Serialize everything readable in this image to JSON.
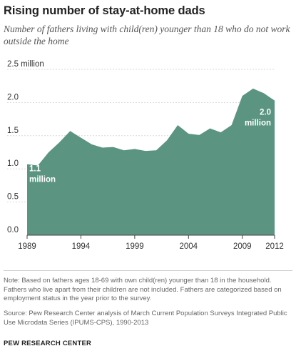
{
  "header": {
    "title": "Rising number of stay-at-home dads",
    "subtitle": "Number of fathers living with child(ren) younger than 18 who do not work outside the home"
  },
  "footer": {
    "note": "Note: Based on fathers ages 18-69 with own child(ren) younger than 18 in the household. Fathers who live apart from their children are not included. Fathers are categorized based on employment status in the year prior to the survey.",
    "source": "Source: Pew Research Center analysis of March Current Population Surveys Integrated Public Use Microdata Series (IPUMS-CPS), 1990-2013",
    "brand": "PEW RESEARCH CENTER"
  },
  "colors": {
    "area": "#5c9482",
    "axis": "#444444"
  },
  "chart_data": {
    "type": "area",
    "title": "Rising number of stay-at-home dads",
    "subtitle": "Number of fathers living with child(ren) younger than 18 who do not work outside the home",
    "x": [
      1989,
      1990,
      1991,
      1992,
      1993,
      1994,
      1995,
      1996,
      1997,
      1998,
      1999,
      2000,
      2001,
      2002,
      2003,
      2004,
      2005,
      2006,
      2007,
      2008,
      2009,
      2010,
      2011,
      2012
    ],
    "series": [
      {
        "values": [
          1.07,
          1.05,
          1.25,
          1.4,
          1.57,
          1.47,
          1.37,
          1.32,
          1.33,
          1.28,
          1.3,
          1.27,
          1.28,
          1.43,
          1.66,
          1.53,
          1.51,
          1.61,
          1.55,
          1.66,
          2.1,
          2.21,
          2.14,
          2.03
        ]
      }
    ],
    "xticks": [
      1989,
      1994,
      1999,
      2004,
      2009,
      2012
    ],
    "xtick_labels": [
      "1989",
      "1994",
      "1999",
      "2004",
      "2009",
      "2012"
    ],
    "yticks": [
      0,
      0.5,
      1.0,
      1.5,
      2.0,
      2.5
    ],
    "ytick_labels": [
      "0.0",
      "0.5",
      "1.0",
      "1.5",
      "2.0",
      "2.5 million"
    ],
    "ylim": [
      0,
      2.5
    ],
    "grid": true,
    "annotations": [
      {
        "x": 1989,
        "lines": [
          "1.1",
          "million"
        ]
      },
      {
        "x": 2012,
        "lines": [
          "2.0",
          "million"
        ]
      }
    ]
  }
}
